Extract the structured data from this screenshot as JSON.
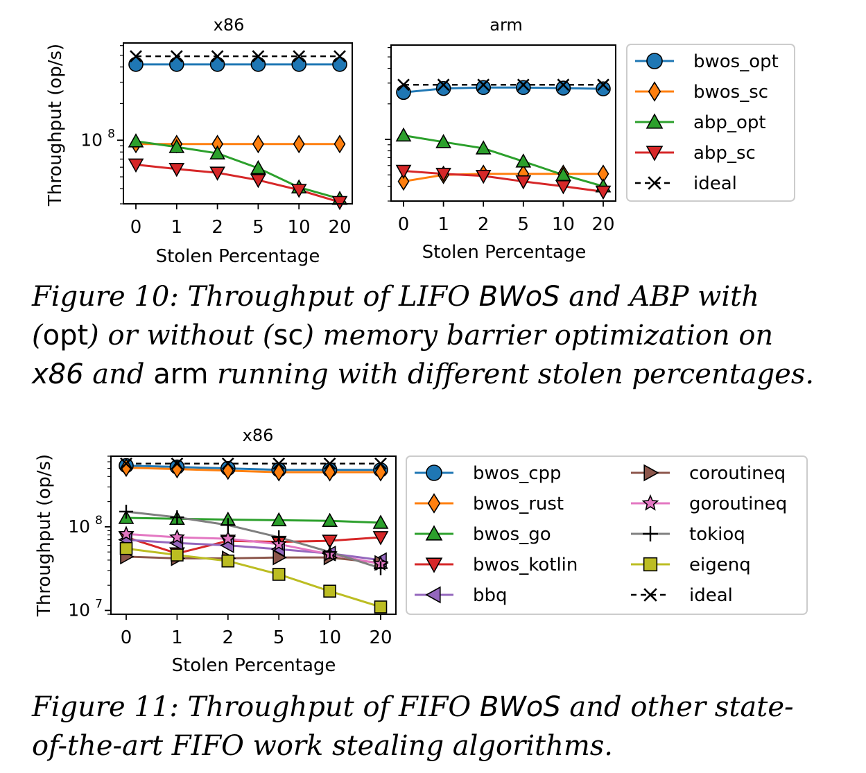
{
  "chart_data": [
    {
      "id": "fig10-x86",
      "type": "line",
      "title": "x86",
      "xlabel": "Stolen Percentage",
      "ylabel": "Throughput (op/s)",
      "yscale": "log",
      "ylim": [
        30000000,
        630000000
      ],
      "categories": [
        "0",
        "1",
        "2",
        "5",
        "10",
        "20"
      ],
      "yticks": [
        {
          "value": 100000000,
          "base": "10",
          "exp": "8"
        }
      ],
      "grid": false,
      "series": [
        {
          "name": "bwos_opt",
          "color": "#1f77b4",
          "marker": "circle",
          "values": [
            420000000,
            420000000,
            420000000,
            420000000,
            420000000,
            420000000
          ]
        },
        {
          "name": "bwos_sc",
          "color": "#ff7f0e",
          "marker": "diamond",
          "values": [
            93000000,
            93000000,
            93000000,
            93000000,
            93000000,
            93000000
          ]
        },
        {
          "name": "abp_opt",
          "color": "#2ca02c",
          "marker": "triangle-up",
          "values": [
            98000000,
            88000000,
            78000000,
            59000000,
            41000000,
            33000000
          ]
        },
        {
          "name": "abp_sc",
          "color": "#d62728",
          "marker": "triangle-down",
          "values": [
            63000000,
            58000000,
            54000000,
            47000000,
            39000000,
            31000000
          ]
        },
        {
          "name": "ideal",
          "color": "#000000",
          "marker": "x",
          "dashed": true,
          "values": [
            490000000,
            490000000,
            490000000,
            490000000,
            490000000,
            490000000
          ]
        }
      ]
    },
    {
      "id": "fig10-arm",
      "type": "line",
      "title": "arm",
      "xlabel": "Stolen Percentage",
      "categories": [
        "0",
        "1",
        "2",
        "5",
        "10",
        "20"
      ],
      "yscale": "log",
      "ylim": [
        30000000,
        630000000
      ],
      "grid": false,
      "series": [
        {
          "name": "bwos_opt",
          "color": "#1f77b4",
          "marker": "circle",
          "values": [
            250000000,
            270000000,
            275000000,
            275000000,
            272000000,
            268000000
          ]
        },
        {
          "name": "bwos_sc",
          "color": "#ff7f0e",
          "marker": "diamond",
          "values": [
            44000000,
            50000000,
            51000000,
            51000000,
            51000000,
            51000000
          ]
        },
        {
          "name": "abp_opt",
          "color": "#2ca02c",
          "marker": "triangle-up",
          "values": [
            108000000,
            95000000,
            84000000,
            65000000,
            50000000,
            40000000
          ]
        },
        {
          "name": "abp_sc",
          "color": "#d62728",
          "marker": "triangle-down",
          "values": [
            54000000,
            51000000,
            49000000,
            44000000,
            40000000,
            36000000
          ]
        },
        {
          "name": "ideal",
          "color": "#000000",
          "marker": "x",
          "dashed": true,
          "values": [
            290000000,
            290000000,
            290000000,
            290000000,
            290000000,
            290000000
          ]
        }
      ],
      "legend": "right"
    },
    {
      "id": "fig11-x86",
      "type": "line",
      "title": "x86",
      "xlabel": "Stolen Percentage",
      "ylabel": "Throughput (op/s)",
      "yscale": "log",
      "ylim": [
        9000000,
        700000000
      ],
      "categories": [
        "0",
        "1",
        "2",
        "5",
        "10",
        "20"
      ],
      "yticks": [
        {
          "value": 100000000,
          "base": "10",
          "exp": "8"
        },
        {
          "value": 10000000,
          "base": "10",
          "exp": "7"
        }
      ],
      "grid": false,
      "series": [
        {
          "name": "bwos_cpp",
          "color": "#1f77b4",
          "marker": "circle",
          "values": [
            540000000,
            520000000,
            500000000,
            480000000,
            480000000,
            480000000
          ]
        },
        {
          "name": "bwos_rust",
          "color": "#ff7f0e",
          "marker": "diamond",
          "values": [
            510000000,
            490000000,
            470000000,
            450000000,
            450000000,
            450000000
          ]
        },
        {
          "name": "bwos_go",
          "color": "#2ca02c",
          "marker": "triangle-up",
          "values": [
            128000000,
            125000000,
            122000000,
            120000000,
            118000000,
            112000000
          ]
        },
        {
          "name": "bwos_kotlin",
          "color": "#d62728",
          "marker": "triangle-down",
          "values": [
            75000000,
            48000000,
            68000000,
            66000000,
            68000000,
            75000000
          ]
        },
        {
          "name": "bbq",
          "color": "#9467bd",
          "marker": "triangle-left",
          "values": [
            70000000,
            64000000,
            60000000,
            54000000,
            48000000,
            40000000
          ]
        },
        {
          "name": "coroutineq",
          "color": "#8c564b",
          "marker": "triangle-right",
          "values": [
            44000000,
            42000000,
            42000000,
            43000000,
            43000000,
            37000000
          ]
        },
        {
          "name": "goroutineq",
          "color": "#e377c2",
          "marker": "star",
          "values": [
            82000000,
            75000000,
            72000000,
            62000000,
            47000000,
            36000000
          ]
        },
        {
          "name": "tokioq",
          "color": "#7f7f7f",
          "marker": "plus",
          "values": [
            152000000,
            130000000,
            105000000,
            75000000,
            50000000,
            32000000
          ]
        },
        {
          "name": "eigenq",
          "color": "#bcbd22",
          "marker": "square",
          "values": [
            55000000,
            46000000,
            39000000,
            27000000,
            17000000,
            11000000
          ]
        },
        {
          "name": "ideal",
          "color": "#000000",
          "marker": "x",
          "dashed": true,
          "values": [
            570000000,
            570000000,
            570000000,
            570000000,
            570000000,
            570000000
          ]
        }
      ],
      "legend": "right"
    }
  ],
  "captions": {
    "fig10": {
      "t1": "Figure 10: Throughput of LIFO ",
      "t2": "BWoS",
      "t3": " and ABP with (",
      "t4": "opt",
      "t5": ") or without (",
      "t6": "sc",
      "t7": ") memory barrier optimization on ",
      "t8": "x86",
      "t9": " and ",
      "t10": "arm",
      "t11": " running with different stolen percentages."
    },
    "fig11": {
      "t1": "Figure 11: Throughput of FIFO ",
      "t2": "BWoS",
      "t3": " and other state-of-the-art FIFO work stealing algorithms."
    }
  }
}
